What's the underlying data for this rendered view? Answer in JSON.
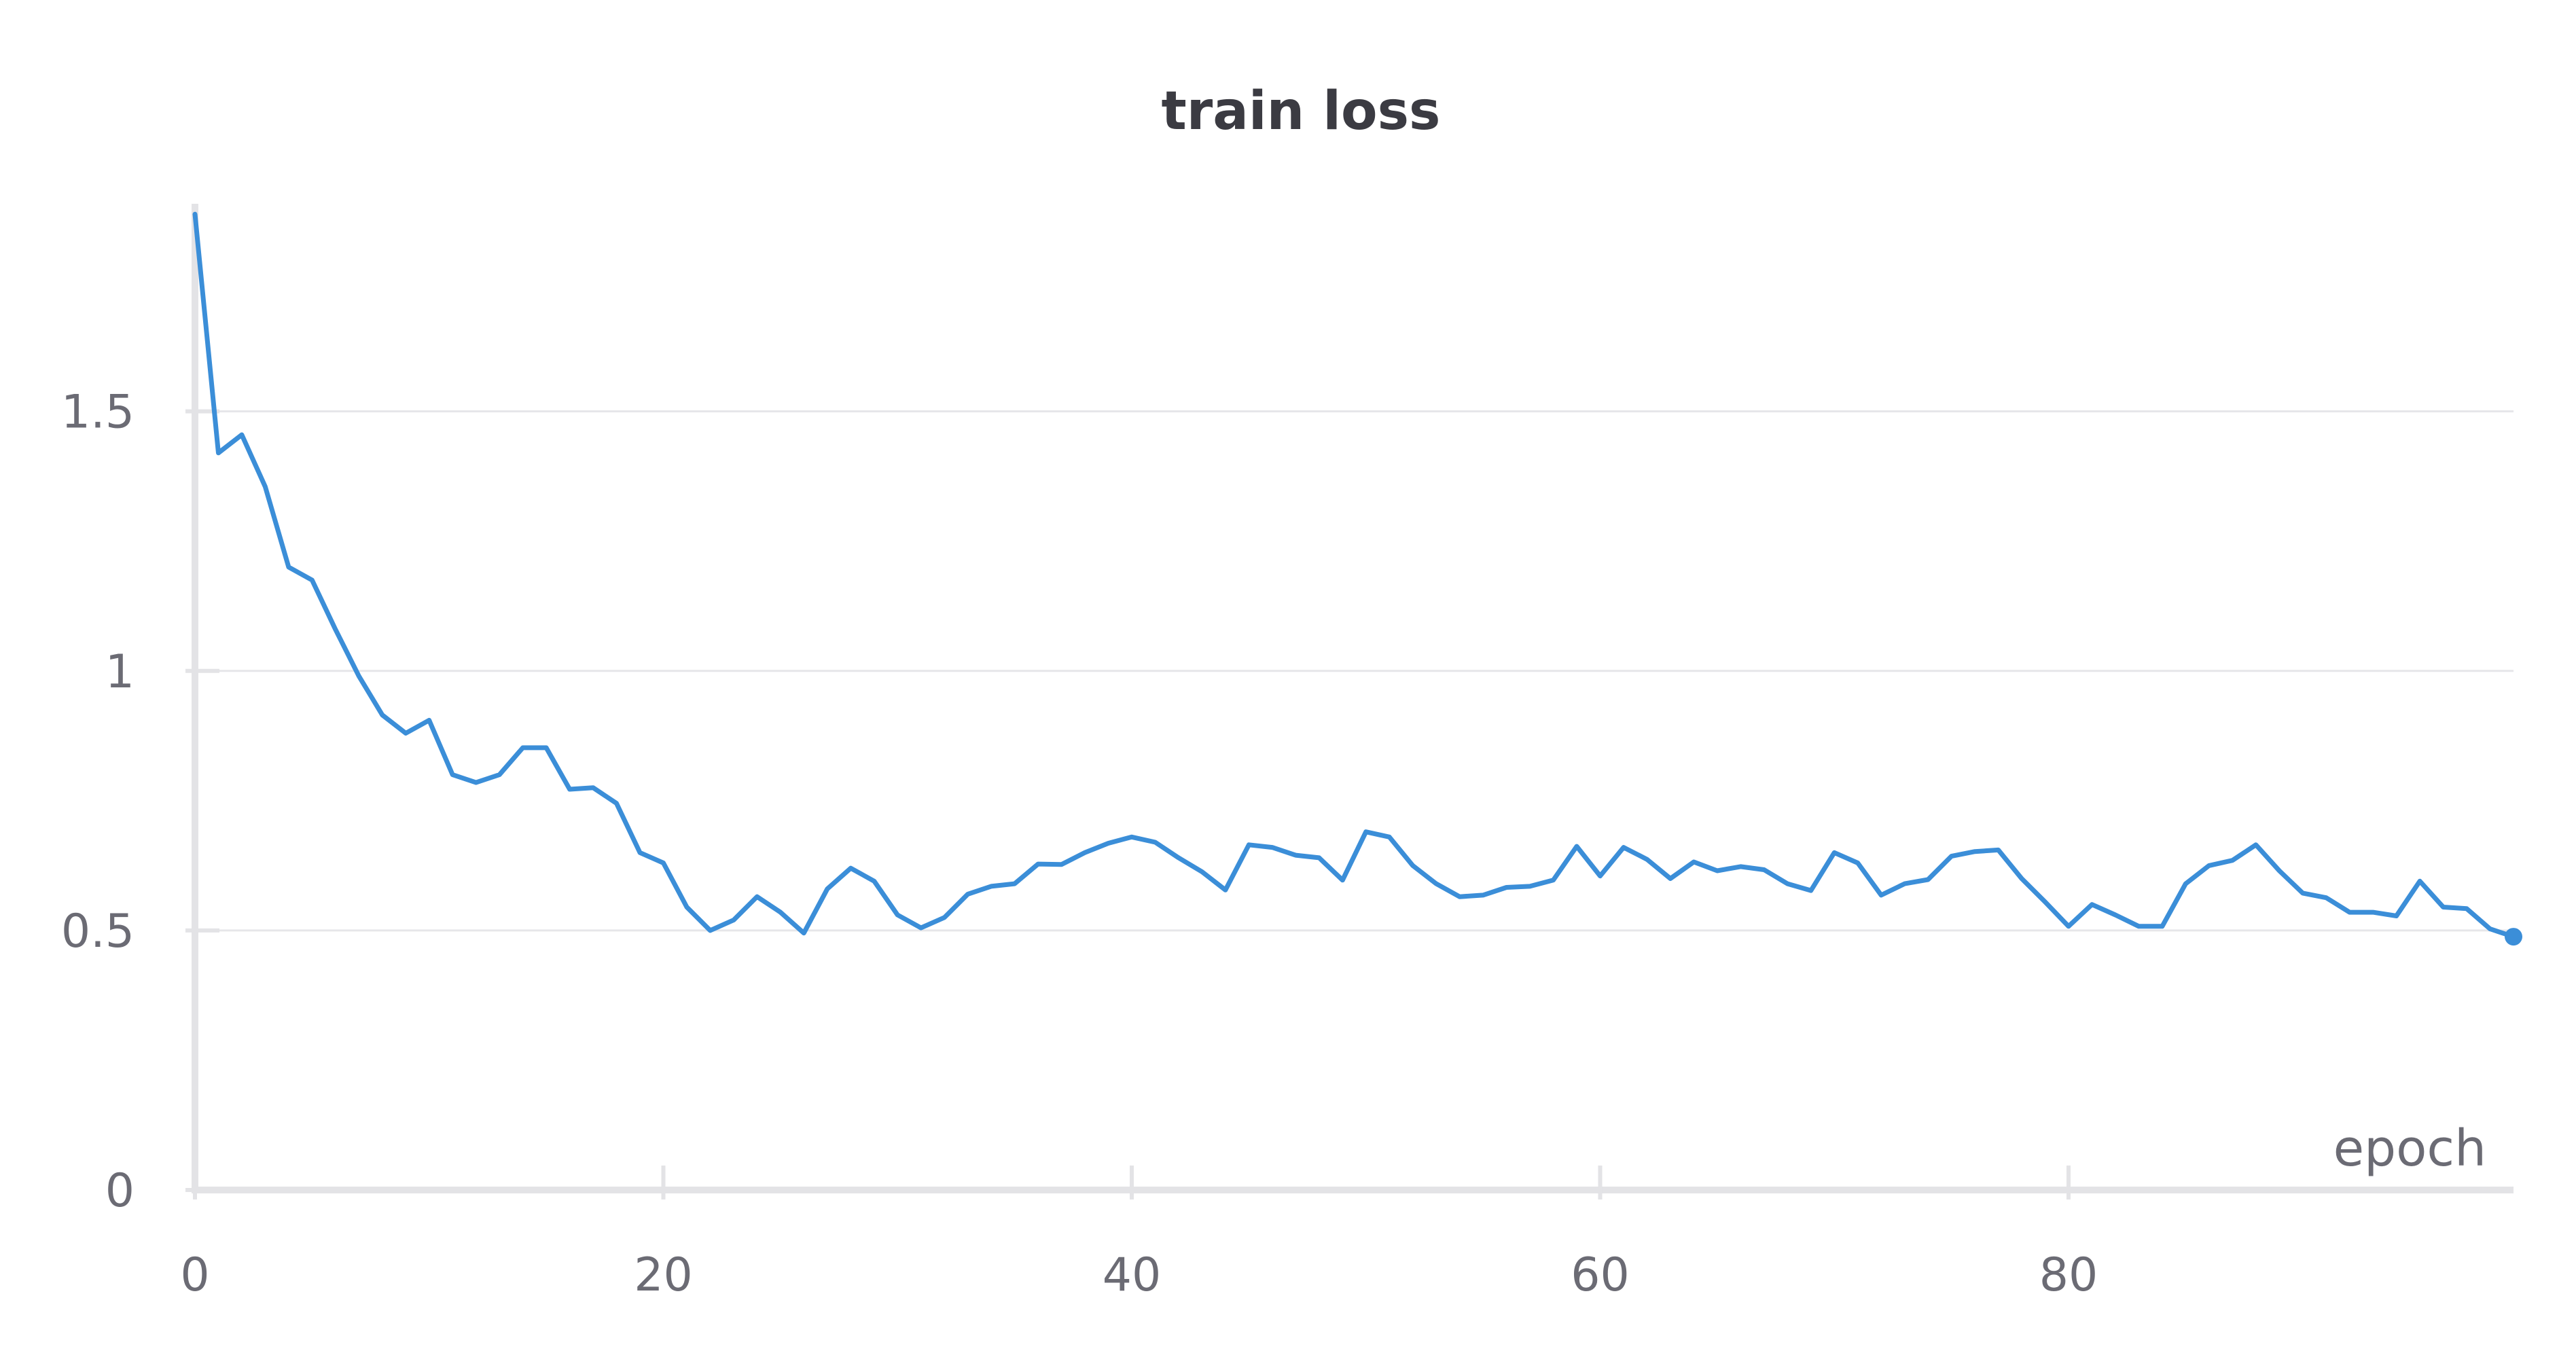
{
  "chart_data": {
    "type": "line",
    "title": "train loss",
    "xlabel": "epoch",
    "ylabel": "",
    "xlim": [
      0,
      99
    ],
    "ylim": [
      0,
      1.9
    ],
    "x_ticks": [
      0,
      20,
      40,
      60,
      80
    ],
    "x_tick_labels": [
      "0",
      "20",
      "40",
      "60",
      "80"
    ],
    "y_ticks": [
      0,
      0.5,
      1,
      1.5
    ],
    "y_tick_labels": [
      "0",
      "0.5",
      "1",
      "1.5"
    ],
    "grid": true,
    "legend": "none",
    "series": [
      {
        "color": "#3b8ed8",
        "x": [
          0,
          1,
          2,
          3,
          4,
          5,
          6,
          7,
          8,
          9,
          10,
          11,
          12,
          13,
          14,
          15,
          16,
          17,
          18,
          19,
          20,
          21,
          22,
          23,
          24,
          25,
          26,
          27,
          28,
          29,
          30,
          31,
          32,
          33,
          34,
          35,
          36,
          37,
          38,
          39,
          40,
          41,
          42,
          43,
          44,
          45,
          46,
          47,
          48,
          49,
          50,
          51,
          52,
          53,
          54,
          55,
          56,
          57,
          58,
          59,
          60,
          61,
          62,
          63,
          64,
          65,
          66,
          67,
          68,
          69,
          70,
          71,
          72,
          73,
          74,
          75,
          76,
          77,
          78,
          79,
          80,
          81,
          82,
          83,
          84,
          85,
          86,
          87,
          88,
          89,
          90,
          91,
          92,
          93,
          94,
          95,
          96,
          97,
          98,
          99
        ],
        "values": [
          1.88,
          1.42,
          1.455,
          1.355,
          1.2,
          1.175,
          1.08,
          0.99,
          0.915,
          0.88,
          0.905,
          0.8,
          0.785,
          0.8,
          0.852,
          0.852,
          0.772,
          0.775,
          0.745,
          0.65,
          0.63,
          0.545,
          0.5,
          0.52,
          0.565,
          0.535,
          0.495,
          0.58,
          0.62,
          0.595,
          0.53,
          0.505,
          0.525,
          0.57,
          0.585,
          0.59,
          0.628,
          0.627,
          0.65,
          0.668,
          0.68,
          0.67,
          0.64,
          0.613,
          0.578,
          0.665,
          0.66,
          0.645,
          0.64,
          0.597,
          0.69,
          0.68,
          0.625,
          0.59,
          0.565,
          0.568,
          0.583,
          0.585,
          0.597,
          0.662,
          0.605,
          0.66,
          0.637,
          0.6,
          0.632,
          0.615,
          0.623,
          0.617,
          0.59,
          0.577,
          0.65,
          0.63,
          0.568,
          0.59,
          0.598,
          0.643,
          0.652,
          0.655,
          0.6,
          0.555,
          0.508,
          0.55,
          0.53,
          0.508,
          0.508,
          0.59,
          0.625,
          0.635,
          0.665,
          0.615,
          0.572,
          0.563,
          0.535,
          0.535,
          0.528,
          0.595,
          0.545,
          0.542,
          0.503,
          0.488
        ]
      }
    ]
  }
}
